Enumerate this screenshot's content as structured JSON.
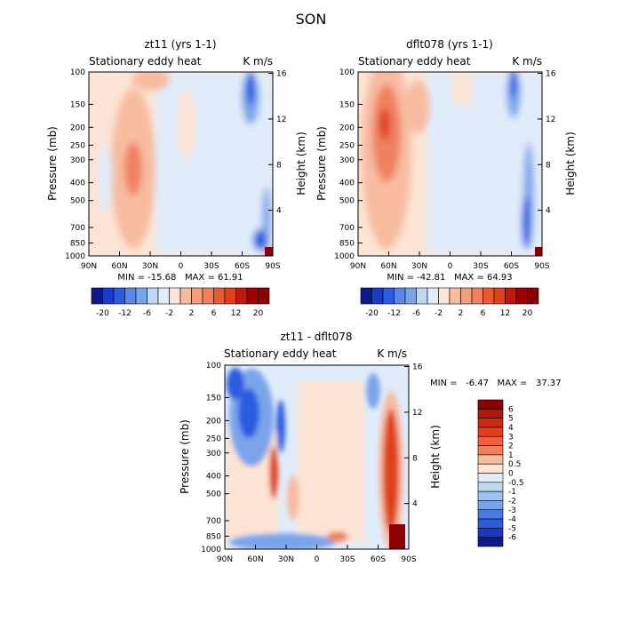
{
  "figure": {
    "season_title": "SON",
    "colors": {
      "red_dark": "#8b0000",
      "red": "#e0401c",
      "red_mid": "#f08060",
      "red_light": "#f7bca0",
      "peach": "#fde4d4",
      "white": "#ffffff",
      "blue_pale": "#e0ecfa",
      "blue_light": "#c0d8f4",
      "blue_mid": "#7aa4ea",
      "blue": "#2a5ce0",
      "blue_dark": "#0a1a8a"
    }
  },
  "chart_data": [
    {
      "type": "heatmap",
      "id": "panel-zt11",
      "title": "zt11 (yrs 1-1)",
      "subtitle_left": "Stationary eddy heat",
      "subtitle_right": "K m/s",
      "xlabel": "",
      "ylabel": "Pressure (mb)",
      "ylabel_right": "Height (km)",
      "x_ticks": [
        "90N",
        "60N",
        "30N",
        "0",
        "30S",
        "60S",
        "90S"
      ],
      "y_ticks": [
        "100",
        "150",
        "200",
        "250",
        "300",
        "400",
        "500",
        "700",
        "850",
        "1000"
      ],
      "y_ticks_right": [
        "16",
        "12",
        "8",
        "4"
      ],
      "stats": "MIN = -15.68   MAX = 61.91",
      "min": -15.68,
      "max": 61.91,
      "levels": [
        "-20",
        "-12",
        "-6",
        "-2",
        "2",
        "6",
        "12",
        "20"
      ]
    },
    {
      "type": "heatmap",
      "id": "panel-dflt078",
      "title": "dflt078 (yrs 1-1)",
      "subtitle_left": "Stationary eddy heat",
      "subtitle_right": "K m/s",
      "xlabel": "",
      "ylabel": "Pressure (mb)",
      "ylabel_right": "Height (km)",
      "x_ticks": [
        "90N",
        "60N",
        "30N",
        "0",
        "30S",
        "60S",
        "90S"
      ],
      "y_ticks": [
        "100",
        "150",
        "200",
        "250",
        "300",
        "400",
        "500",
        "700",
        "850",
        "1000"
      ],
      "y_ticks_right": [
        "16",
        "12",
        "8",
        "4"
      ],
      "stats": "MIN = -42.81   MAX = 64.93",
      "min": -42.81,
      "max": 64.93,
      "levels": [
        "-20",
        "-12",
        "-6",
        "-2",
        "2",
        "6",
        "12",
        "20"
      ]
    },
    {
      "type": "heatmap",
      "id": "panel-diff",
      "title": "zt11 - dflt078",
      "subtitle_left": "Stationary eddy heat",
      "subtitle_right": "K m/s",
      "xlabel": "",
      "ylabel": "Pressure (mb)",
      "ylabel_right": "Height (km)",
      "x_ticks": [
        "90N",
        "60N",
        "30N",
        "0",
        "30S",
        "60S",
        "90S"
      ],
      "y_ticks": [
        "100",
        "150",
        "200",
        "250",
        "300",
        "400",
        "500",
        "700",
        "850",
        "1000"
      ],
      "y_ticks_right": [
        "16",
        "12",
        "8",
        "4"
      ],
      "stats": "MIN =   -6.47   MAX =   37.37",
      "min": -6.47,
      "max": 37.37,
      "levels": [
        "6",
        "5",
        "4",
        "3",
        "2",
        "1",
        "0.5",
        "0",
        "-0.5",
        "-1",
        "-2",
        "-3",
        "-4",
        "-5",
        "-6"
      ]
    }
  ]
}
